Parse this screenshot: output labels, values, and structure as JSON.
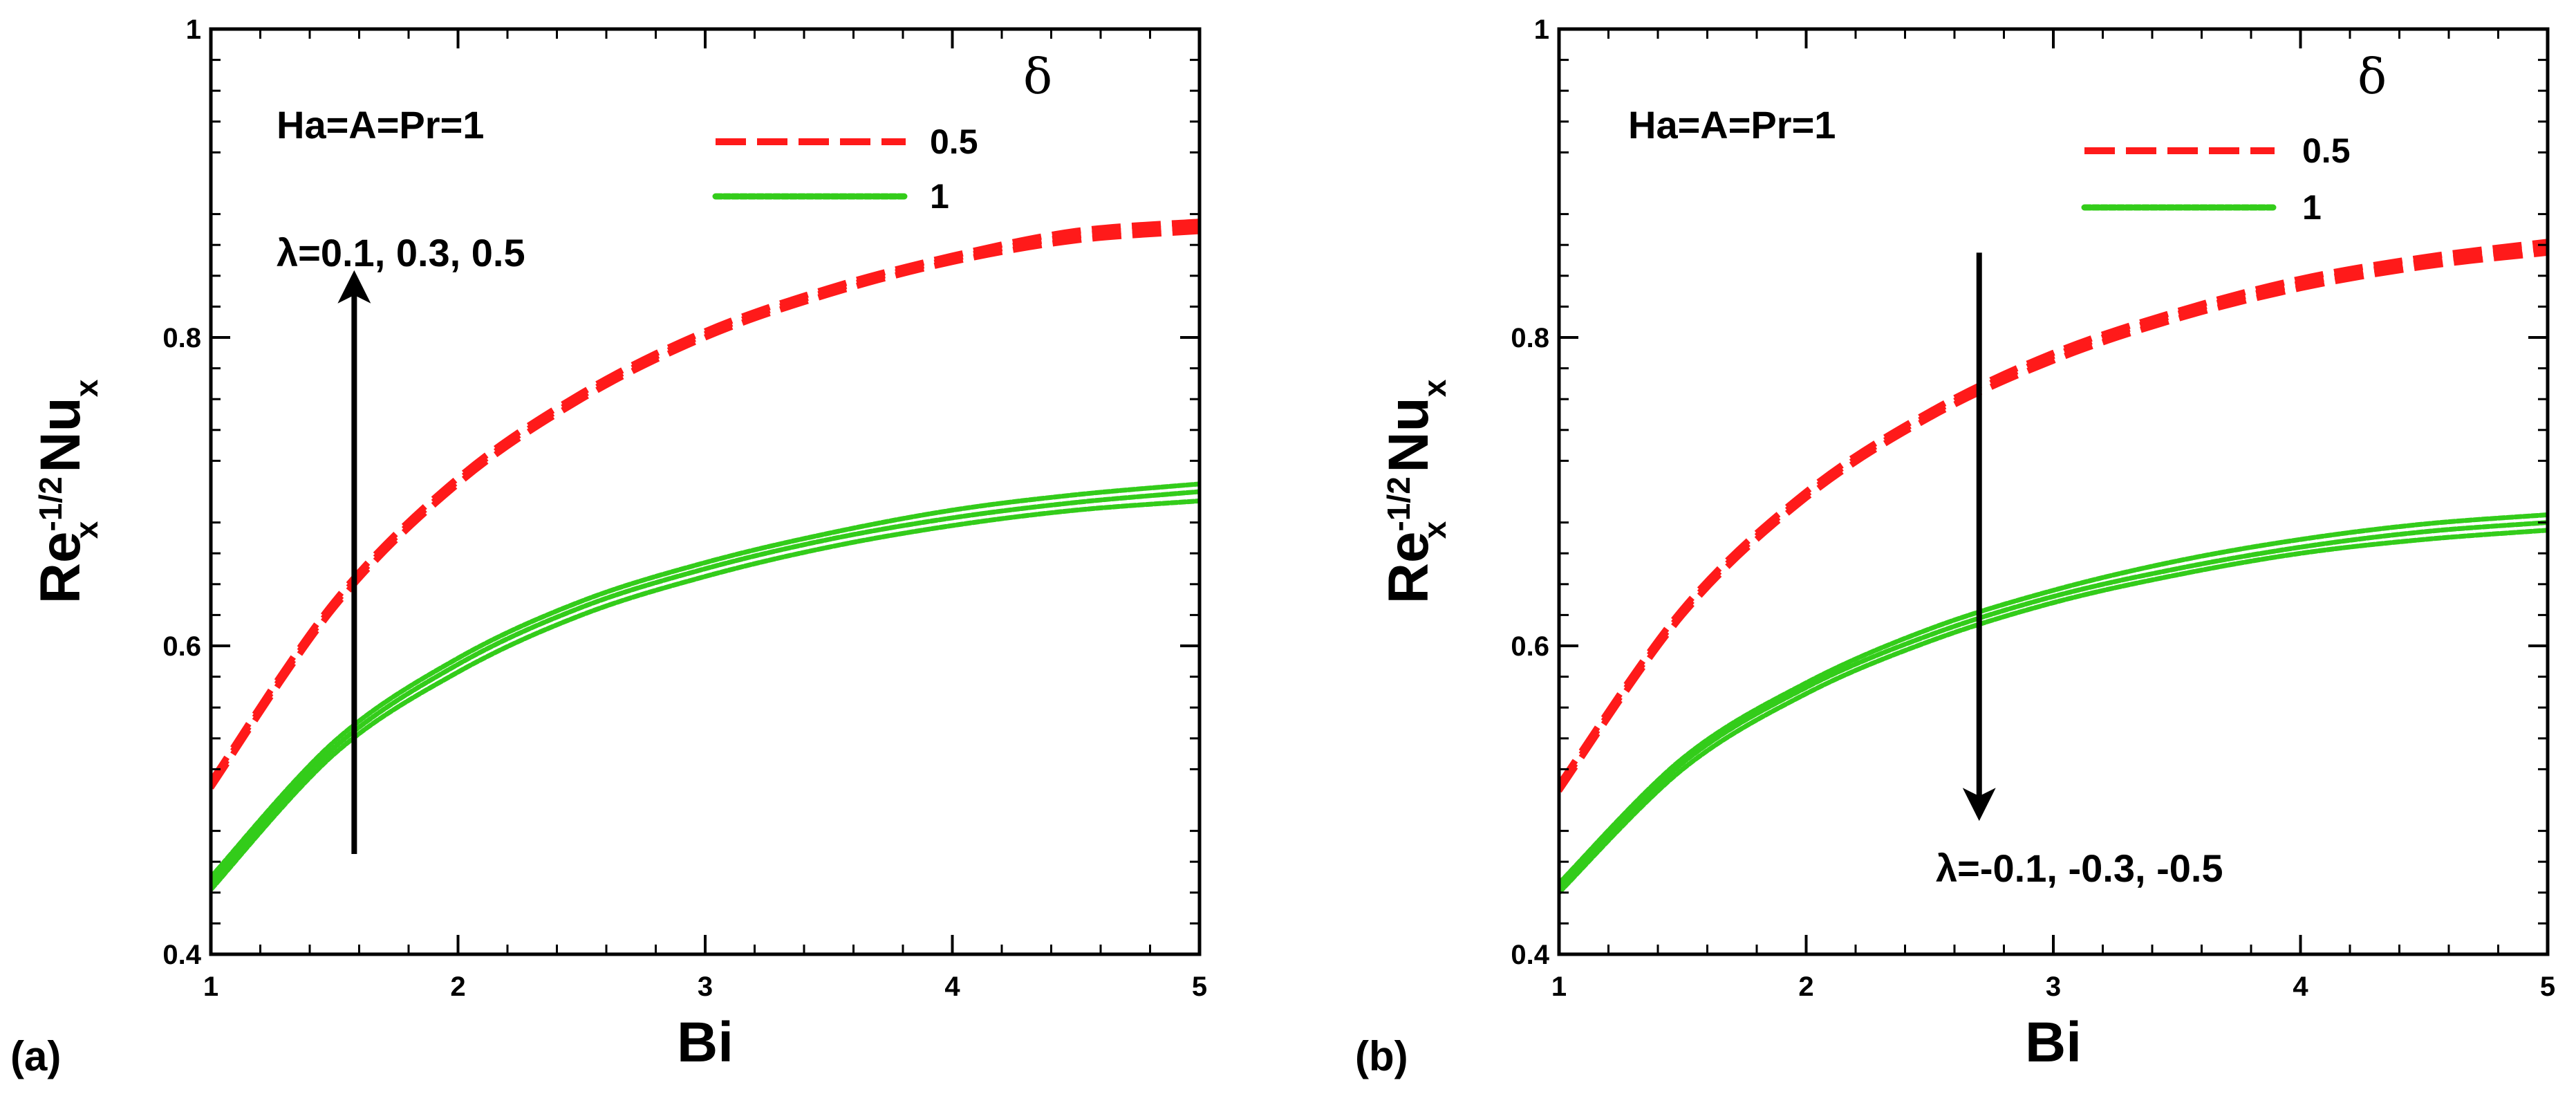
{
  "colors": {
    "red": "#ff1a1a",
    "green": "#33cc1a",
    "black": "#000000"
  },
  "chart_data": [
    {
      "type": "line",
      "panel_label": "(a)",
      "xlabel": "Bi",
      "ylabel": {
        "base": "Re",
        "sup": "-1/2",
        "sub": "x",
        "rest": "Nu",
        "sub2": "x"
      },
      "xlim": [
        1,
        5
      ],
      "ylim": [
        0.4,
        1
      ],
      "xticks": [
        "1",
        "2",
        "3",
        "4",
        "5"
      ],
      "yticks": [
        "0.4",
        "0.6",
        "0.8",
        "1"
      ],
      "x": [
        1,
        1.5,
        2,
        2.5,
        3,
        3.5,
        4,
        4.5,
        5
      ],
      "annotation": "Ha=A=Pr=1",
      "arrow_label": "λ=0.1, 0.3, 0.5",
      "arrow": {
        "x": 1.58,
        "from": 0.465,
        "to": 0.84,
        "direction": "up"
      },
      "legend": {
        "title": "δ",
        "entries": [
          "0.5",
          "1"
        ]
      },
      "series": [
        {
          "name": "δ=0.5, λ=0.1",
          "group": "0.5",
          "style": "dashed",
          "color": "red",
          "values": [
            0.508,
            0.625,
            0.705,
            0.76,
            0.8,
            0.828,
            0.849,
            0.863,
            0.869
          ]
        },
        {
          "name": "δ=0.5, λ=0.3",
          "group": "0.5",
          "style": "dashed",
          "color": "red",
          "values": [
            0.51,
            0.627,
            0.707,
            0.762,
            0.802,
            0.83,
            0.851,
            0.866,
            0.872
          ]
        },
        {
          "name": "δ=0.5, λ=0.5",
          "group": "0.5",
          "style": "dashed",
          "color": "red",
          "values": [
            0.512,
            0.629,
            0.709,
            0.764,
            0.804,
            0.832,
            0.853,
            0.869,
            0.875
          ]
        },
        {
          "name": "δ=1, λ=0.1",
          "group": "1",
          "style": "dotted",
          "color": "green",
          "values": [
            0.442,
            0.53,
            0.583,
            0.62,
            0.645,
            0.664,
            0.678,
            0.688,
            0.694
          ]
        },
        {
          "name": "δ=1, λ=0.3",
          "group": "1",
          "style": "dotted",
          "color": "green",
          "values": [
            0.446,
            0.534,
            0.588,
            0.625,
            0.65,
            0.669,
            0.683,
            0.693,
            0.7
          ]
        },
        {
          "name": "δ=1, λ=0.5",
          "group": "1",
          "style": "dotted",
          "color": "green",
          "values": [
            0.45,
            0.538,
            0.592,
            0.629,
            0.654,
            0.673,
            0.688,
            0.698,
            0.705
          ]
        }
      ]
    },
    {
      "type": "line",
      "panel_label": "(b)",
      "xlabel": "Bi",
      "ylabel": {
        "base": "Re",
        "sup": "-1/2",
        "sub": "x",
        "rest": "Nu",
        "sub2": "x"
      },
      "xlim": [
        1,
        5
      ],
      "ylim": [
        0.4,
        1
      ],
      "xticks": [
        "1",
        "2",
        "3",
        "4",
        "5"
      ],
      "yticks": [
        "0.4",
        "0.6",
        "0.8",
        "1"
      ],
      "x": [
        1,
        1.5,
        2,
        2.5,
        3,
        3.5,
        4,
        4.5,
        5
      ],
      "annotation": "Ha=A=Pr=1",
      "arrow_label": "λ=-0.1, -0.3, -0.5",
      "arrow": {
        "x": 2.7,
        "from": 0.855,
        "to": 0.49,
        "direction": "down"
      },
      "legend": {
        "title": "δ",
        "entries": [
          "0.5",
          "1"
        ]
      },
      "series": [
        {
          "name": "δ=0.5, λ=-0.1",
          "group": "0.5",
          "style": "dashed",
          "color": "red",
          "values": [
            0.51,
            0.624,
            0.7,
            0.752,
            0.79,
            0.817,
            0.838,
            0.852,
            0.862
          ]
        },
        {
          "name": "δ=0.5, λ=-0.3",
          "group": "0.5",
          "style": "dashed",
          "color": "red",
          "values": [
            0.508,
            0.622,
            0.698,
            0.75,
            0.788,
            0.815,
            0.835,
            0.849,
            0.858
          ]
        },
        {
          "name": "δ=0.5, λ=-0.5",
          "group": "0.5",
          "style": "dashed",
          "color": "red",
          "values": [
            0.506,
            0.62,
            0.696,
            0.748,
            0.785,
            0.812,
            0.832,
            0.846,
            0.855
          ]
        },
        {
          "name": "δ=1, λ=-0.1",
          "group": "1",
          "style": "dotted",
          "color": "green",
          "values": [
            0.446,
            0.527,
            0.576,
            0.611,
            0.636,
            0.655,
            0.669,
            0.679,
            0.685
          ]
        },
        {
          "name": "δ=1, λ=-0.3",
          "group": "1",
          "style": "dotted",
          "color": "green",
          "values": [
            0.443,
            0.524,
            0.573,
            0.607,
            0.632,
            0.65,
            0.664,
            0.674,
            0.68
          ]
        },
        {
          "name": "δ=1, λ=-0.5",
          "group": "1",
          "style": "dotted",
          "color": "green",
          "values": [
            0.44,
            0.52,
            0.569,
            0.603,
            0.628,
            0.646,
            0.66,
            0.669,
            0.675
          ]
        }
      ]
    }
  ]
}
